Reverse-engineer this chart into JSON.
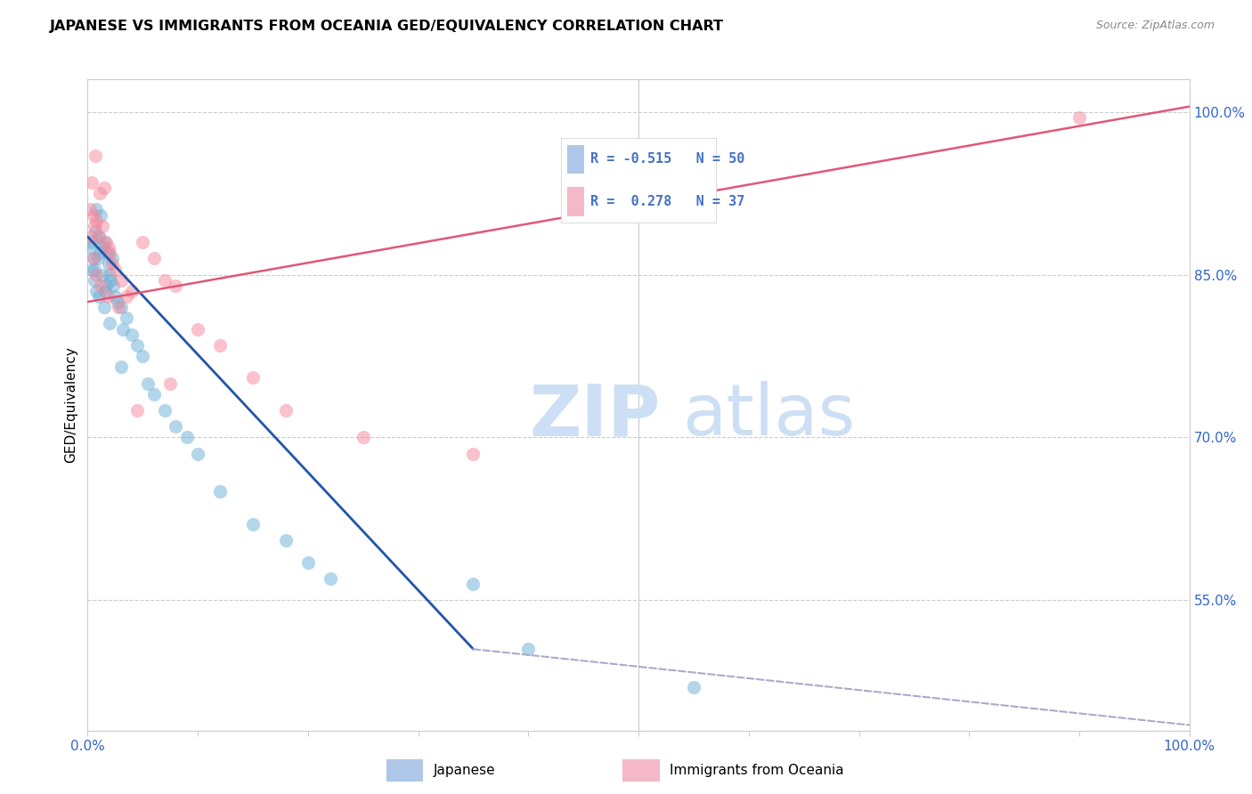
{
  "title": "JAPANESE VS IMMIGRANTS FROM OCEANIA GED/EQUIVALENCY CORRELATION CHART",
  "source": "Source: ZipAtlas.com",
  "ylabel": "GED/Equivalency",
  "yticks": [
    55.0,
    70.0,
    85.0,
    100.0
  ],
  "legend_color1": "#aec6e8",
  "legend_color2": "#f4b8c8",
  "watermark_zip": "ZIP",
  "watermark_atlas": "atlas",
  "watermark_color": "#ccdff5",
  "blue_color": "#6aaed6",
  "pink_color": "#f4879a",
  "trend_blue": "#2255aa",
  "trend_pink": "#e05878",
  "trend_gray": "#aaaacc",
  "label_color": "#4472c4",
  "japanese_label": "Japanese",
  "oceania_label": "Immigrants from Oceania",
  "japanese_points_x": [
    0.3,
    0.4,
    0.5,
    0.6,
    0.7,
    0.8,
    0.9,
    1.0,
    1.1,
    1.2,
    1.3,
    1.4,
    1.5,
    1.6,
    1.7,
    1.8,
    1.9,
    2.0,
    2.1,
    2.2,
    2.3,
    2.5,
    2.7,
    3.0,
    3.2,
    3.5,
    4.0,
    4.5,
    5.0,
    5.5,
    6.0,
    7.0,
    8.0,
    9.0,
    10.0,
    12.0,
    15.0,
    18.0,
    20.0,
    22.0,
    0.4,
    0.6,
    0.8,
    1.0,
    1.5,
    2.0,
    3.0,
    35.0,
    40.0,
    55.0
  ],
  "japanese_points_y": [
    87.5,
    88.0,
    86.5,
    85.5,
    89.0,
    91.0,
    86.5,
    88.5,
    87.0,
    90.5,
    85.0,
    87.5,
    88.0,
    83.5,
    84.0,
    87.0,
    86.0,
    85.0,
    84.5,
    86.5,
    84.0,
    83.0,
    82.5,
    82.0,
    80.0,
    81.0,
    79.5,
    78.5,
    77.5,
    75.0,
    74.0,
    72.5,
    71.0,
    70.0,
    68.5,
    65.0,
    62.0,
    60.5,
    58.5,
    57.0,
    85.5,
    84.5,
    83.5,
    83.0,
    82.0,
    80.5,
    76.5,
    56.5,
    50.5,
    47.0
  ],
  "oceania_points_x": [
    0.2,
    0.4,
    0.5,
    0.6,
    0.7,
    0.8,
    1.0,
    1.1,
    1.3,
    1.5,
    1.7,
    1.9,
    2.0,
    2.2,
    2.5,
    3.0,
    3.5,
    4.0,
    5.0,
    6.0,
    7.0,
    8.0,
    10.0,
    12.0,
    15.0,
    18.0,
    25.0,
    35.0,
    0.3,
    0.5,
    0.8,
    1.2,
    1.8,
    2.8,
    4.5,
    7.5,
    90.0
  ],
  "oceania_points_y": [
    91.0,
    93.5,
    90.5,
    89.5,
    96.0,
    90.0,
    88.5,
    92.5,
    89.5,
    93.0,
    88.0,
    87.5,
    87.0,
    86.0,
    85.5,
    84.5,
    83.0,
    83.5,
    88.0,
    86.5,
    84.5,
    84.0,
    80.0,
    78.5,
    75.5,
    72.5,
    70.0,
    68.5,
    88.5,
    86.5,
    85.0,
    84.0,
    83.0,
    82.0,
    72.5,
    75.0,
    99.5
  ],
  "xlim": [
    0,
    100
  ],
  "ylim": [
    43.0,
    103.0
  ],
  "blue_line": {
    "x0": 0,
    "y0": 88.5,
    "x1": 35,
    "y1": 50.5
  },
  "pink_line": {
    "x0": 0,
    "y0": 82.5,
    "x1": 100,
    "y1": 100.5
  },
  "gray_line": {
    "x0": 35,
    "y0": 50.5,
    "x1": 100,
    "y1": 43.5
  },
  "title_fontsize": 11.5,
  "source_fontsize": 9,
  "axis_label_color": "#3366cc",
  "marker_size": 120
}
